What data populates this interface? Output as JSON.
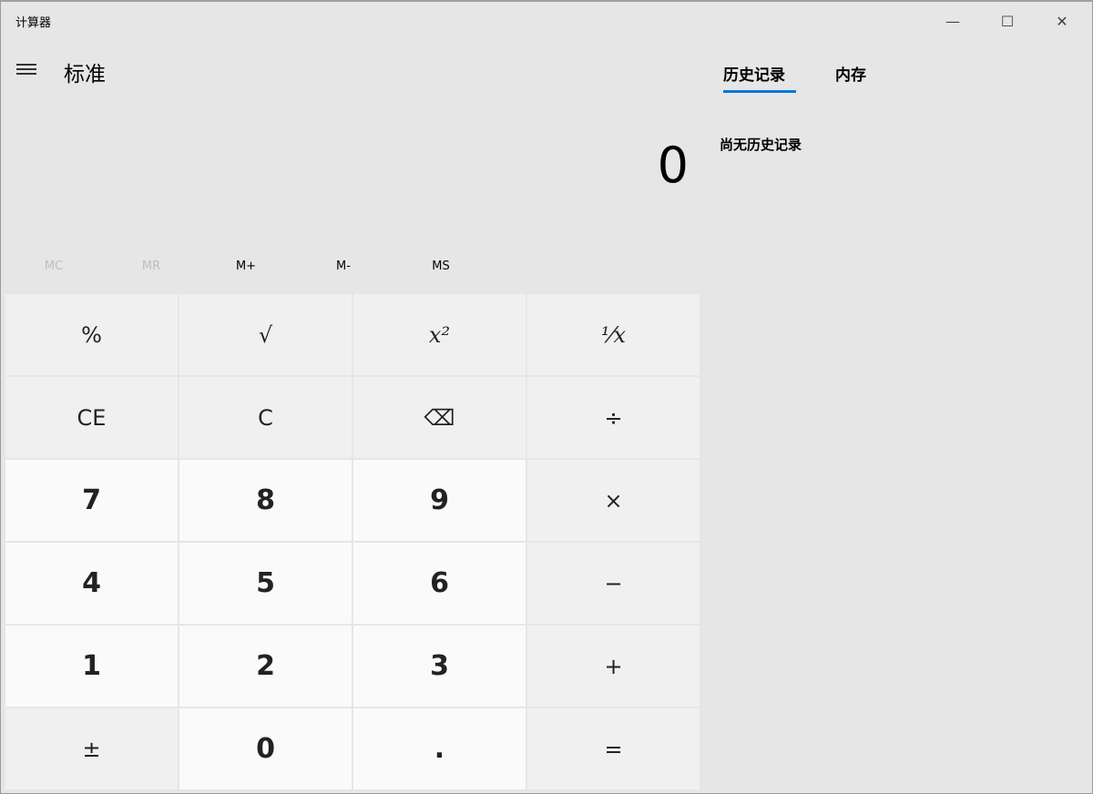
{
  "window": {
    "title": "计算器",
    "minimize": "—",
    "maximize": "☐",
    "close": "✕"
  },
  "header": {
    "mode": "标准"
  },
  "display": {
    "value": "0"
  },
  "memory": [
    {
      "label": "MC",
      "enabled": false
    },
    {
      "label": "MR",
      "enabled": false
    },
    {
      "label": "M+",
      "enabled": true
    },
    {
      "label": "M-",
      "enabled": true
    },
    {
      "label": "MS",
      "enabled": true
    }
  ],
  "keys": [
    {
      "label": "%",
      "name": "percent"
    },
    {
      "label": "√",
      "name": "square-root"
    },
    {
      "label": "x²",
      "name": "square"
    },
    {
      "label": "¹⁄x",
      "name": "reciprocal"
    },
    {
      "label": "CE",
      "name": "clear-entry"
    },
    {
      "label": "C",
      "name": "clear"
    },
    {
      "label": "⌫",
      "name": "backspace"
    },
    {
      "label": "÷",
      "name": "divide"
    },
    {
      "label": "7",
      "name": "digit-7",
      "num": true
    },
    {
      "label": "8",
      "name": "digit-8",
      "num": true
    },
    {
      "label": "9",
      "name": "digit-9",
      "num": true
    },
    {
      "label": "×",
      "name": "multiply"
    },
    {
      "label": "4",
      "name": "digit-4",
      "num": true
    },
    {
      "label": "5",
      "name": "digit-5",
      "num": true
    },
    {
      "label": "6",
      "name": "digit-6",
      "num": true
    },
    {
      "label": "−",
      "name": "subtract"
    },
    {
      "label": "1",
      "name": "digit-1",
      "num": true
    },
    {
      "label": "2",
      "name": "digit-2",
      "num": true
    },
    {
      "label": "3",
      "name": "digit-3",
      "num": true
    },
    {
      "label": "+",
      "name": "add"
    },
    {
      "label": "±",
      "name": "negate"
    },
    {
      "label": "0",
      "name": "digit-0",
      "num": true
    },
    {
      "label": ".",
      "name": "decimal",
      "num": true
    },
    {
      "label": "=",
      "name": "equals"
    }
  ],
  "side": {
    "tabs": [
      "历史记录",
      "内存"
    ],
    "active_tab": 0,
    "empty_text": "尚无历史记录",
    "accent": "#0078d7"
  }
}
